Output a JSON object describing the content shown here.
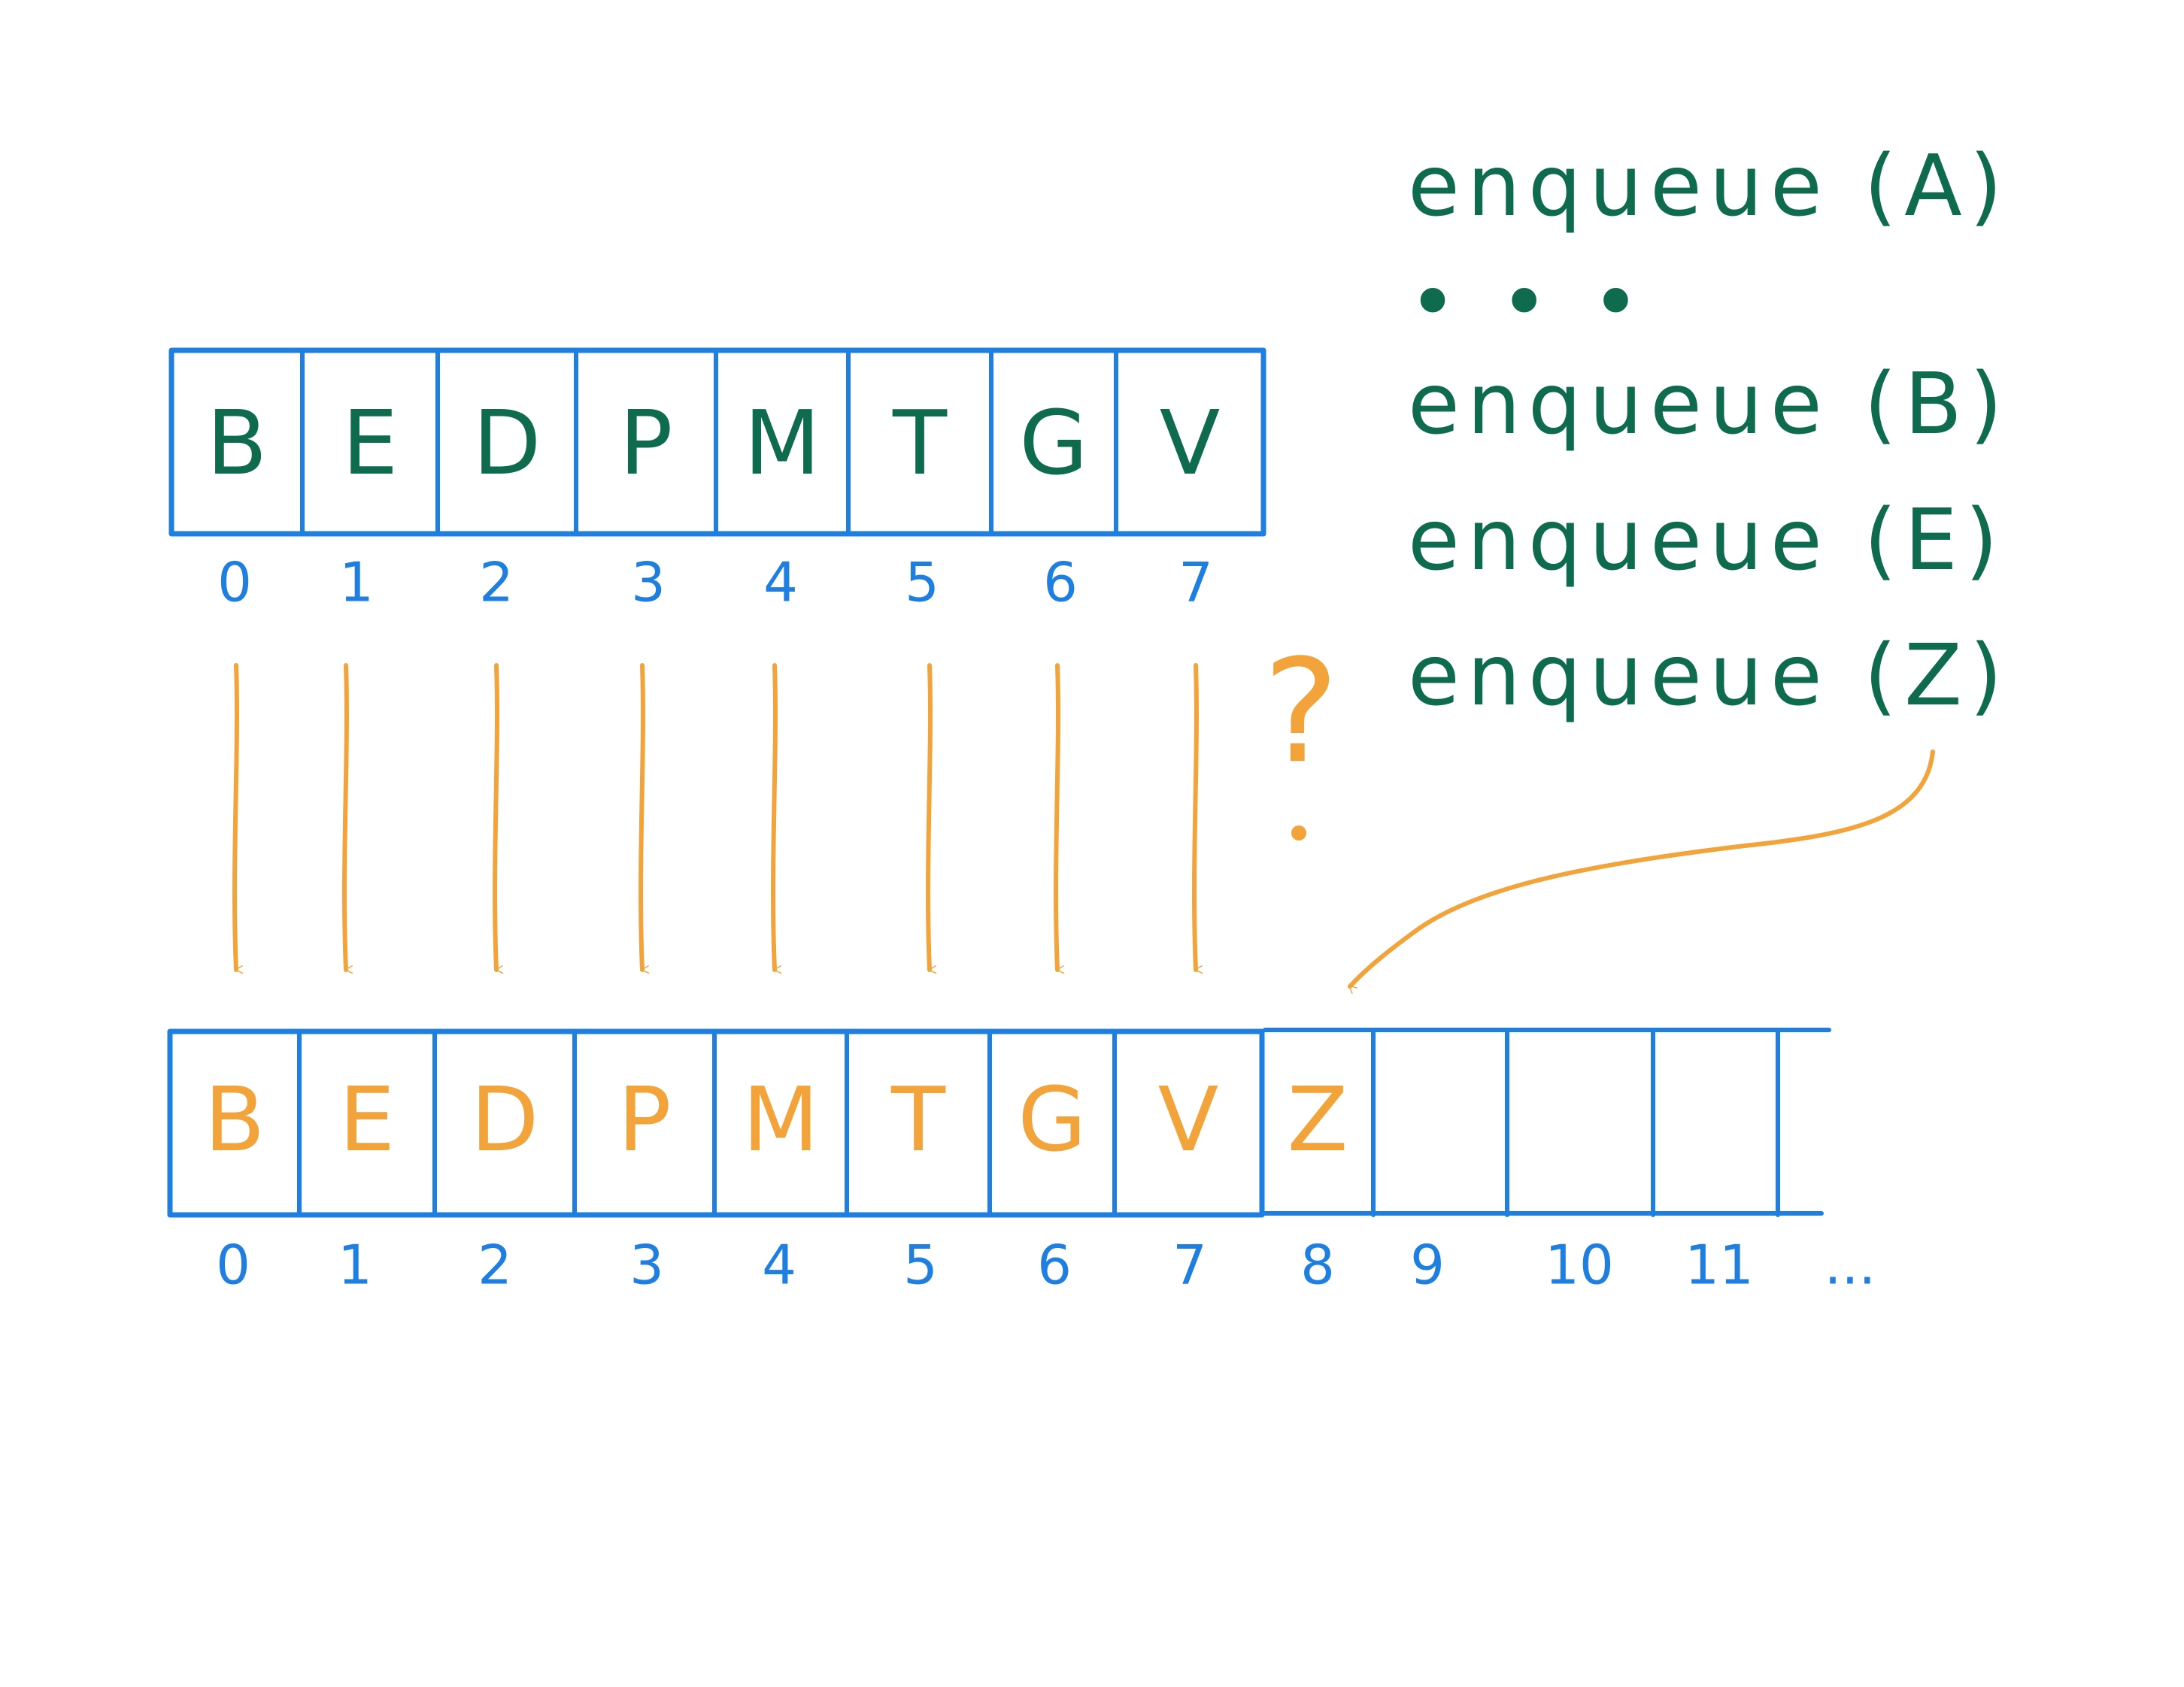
{
  "colors": {
    "blue": "#1f7fe0",
    "green": "#0f6b4e",
    "orange": "#f2a33a"
  },
  "original_array": {
    "cells": [
      "B",
      "E",
      "D",
      "P",
      "M",
      "T",
      "G",
      "V"
    ],
    "indices": [
      "0",
      "1",
      "2",
      "3",
      "4",
      "5",
      "6",
      "7"
    ]
  },
  "resized_array": {
    "cells": [
      "B",
      "E",
      "D",
      "P",
      "M",
      "T",
      "G",
      "V",
      "Z",
      "",
      "",
      "",
      ""
    ],
    "indices": [
      "0",
      "1",
      "2",
      "3",
      "4",
      "5",
      "6",
      "7",
      "8",
      "9",
      "10",
      "11",
      "..."
    ]
  },
  "operations": [
    "enqueue (A)",
    "• • •",
    "enqueue (B)",
    "enqueue (E)",
    "enqueue (Z)"
  ],
  "question_mark": "?"
}
